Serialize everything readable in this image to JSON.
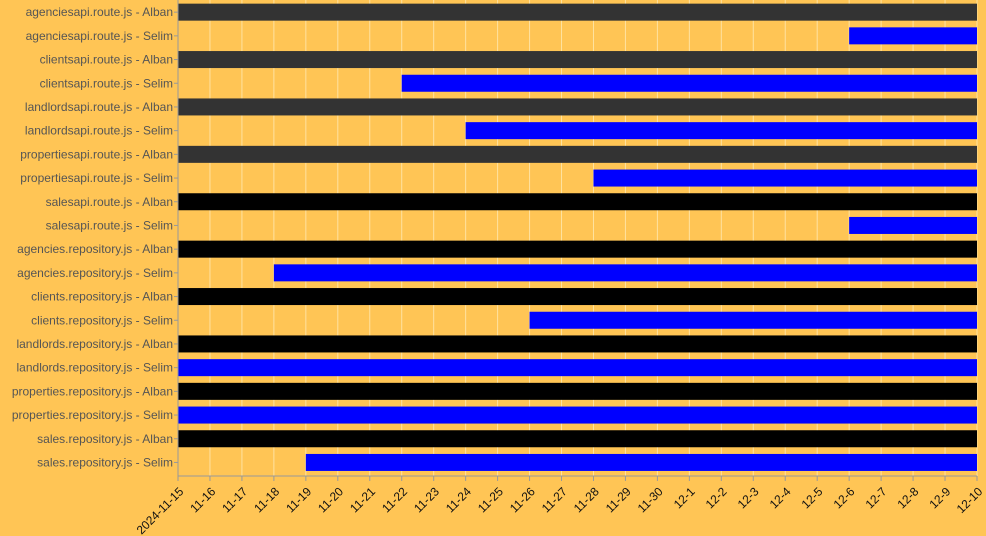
{
  "chart_data": {
    "type": "gantt",
    "title": "",
    "xlabel": "",
    "ylabel": "",
    "grid": true,
    "x_ticks": [
      "2024-11-15",
      "11-16",
      "11-17",
      "11-18",
      "11-19",
      "11-20",
      "11-21",
      "11-22",
      "11-23",
      "11-24",
      "11-25",
      "11-26",
      "11-27",
      "11-28",
      "11-29",
      "11-30",
      "12-1",
      "12-2",
      "12-3",
      "12-4",
      "12-5",
      "12-6",
      "12-7",
      "12-8",
      "12-9",
      "12-10"
    ],
    "x_range": [
      "2024-11-15",
      "2024-12-10"
    ],
    "tasks": [
      {
        "label": "agenciesapi.route.js - Alban",
        "start": "2024-11-15",
        "end": "2024-12-10",
        "color": "#333333"
      },
      {
        "label": "agenciesapi.route.js - Selim",
        "start": "2024-12-06",
        "end": "2024-12-10",
        "color": "#0000FF"
      },
      {
        "label": "clientsapi.route.js - Alban",
        "start": "2024-11-15",
        "end": "2024-12-10",
        "color": "#333333"
      },
      {
        "label": "clientsapi.route.js - Selim",
        "start": "2024-11-22",
        "end": "2024-12-10",
        "color": "#0000FF"
      },
      {
        "label": "landlordsapi.route.js - Alban",
        "start": "2024-11-15",
        "end": "2024-12-10",
        "color": "#333333"
      },
      {
        "label": "landlordsapi.route.js - Selim",
        "start": "2024-11-24",
        "end": "2024-12-10",
        "color": "#0000FF"
      },
      {
        "label": "propertiesapi.route.js - Alban",
        "start": "2024-11-15",
        "end": "2024-12-10",
        "color": "#333333"
      },
      {
        "label": "propertiesapi.route.js - Selim",
        "start": "2024-11-28",
        "end": "2024-12-10",
        "color": "#0000FF"
      },
      {
        "label": "salesapi.route.js - Alban",
        "start": "2024-11-15",
        "end": "2024-12-10",
        "color": "#000000"
      },
      {
        "label": "salesapi.route.js - Selim",
        "start": "2024-12-06",
        "end": "2024-12-10",
        "color": "#0000FF"
      },
      {
        "label": "agencies.repository.js - Alban",
        "start": "2024-11-15",
        "end": "2024-12-10",
        "color": "#000000"
      },
      {
        "label": "agencies.repository.js - Selim",
        "start": "2024-11-18",
        "end": "2024-12-10",
        "color": "#0000FF"
      },
      {
        "label": "clients.repository.js - Alban",
        "start": "2024-11-15",
        "end": "2024-12-10",
        "color": "#000000"
      },
      {
        "label": "clients.repository.js - Selim",
        "start": "2024-11-26",
        "end": "2024-12-10",
        "color": "#0000FF"
      },
      {
        "label": "landlords.repository.js - Alban",
        "start": "2024-11-15",
        "end": "2024-12-10",
        "color": "#000000"
      },
      {
        "label": "landlords.repository.js - Selim",
        "start": "2024-11-15",
        "end": "2024-12-10",
        "color": "#0000FF"
      },
      {
        "label": "properties.repository.js - Alban",
        "start": "2024-11-15",
        "end": "2024-12-10",
        "color": "#000000"
      },
      {
        "label": "properties.repository.js - Selim",
        "start": "2024-11-15",
        "end": "2024-12-10",
        "color": "#0000FF"
      },
      {
        "label": "sales.repository.js - Alban",
        "start": "2024-11-15",
        "end": "2024-12-10",
        "color": "#000000"
      },
      {
        "label": "sales.repository.js - Selim",
        "start": "2024-11-19",
        "end": "2024-12-10",
        "color": "#0000FF"
      }
    ],
    "colors": {
      "background": "#FFC555",
      "grid": "#FFE2A0",
      "axis": "#999999"
    }
  }
}
